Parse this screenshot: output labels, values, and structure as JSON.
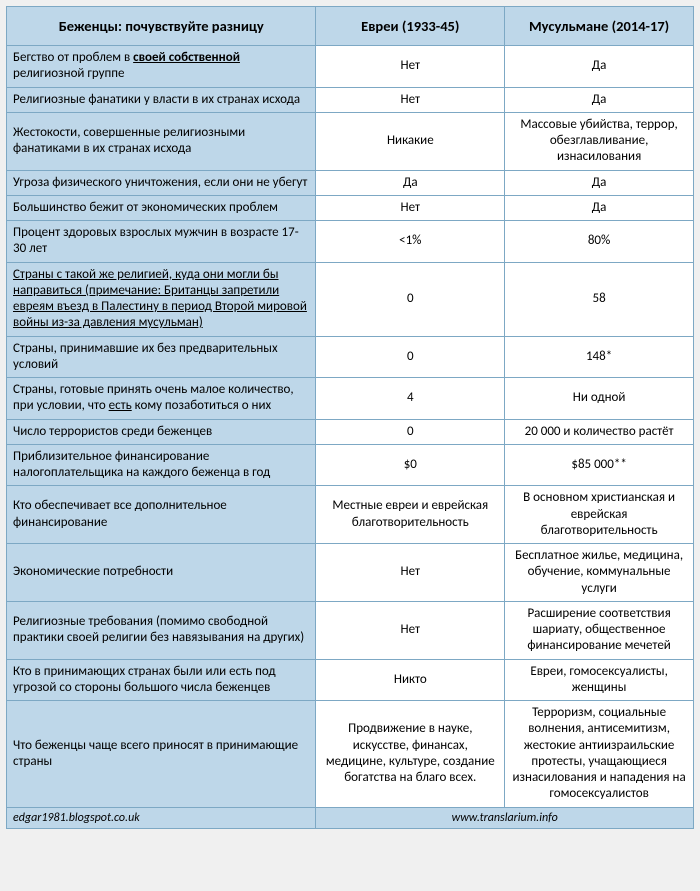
{
  "header": {
    "title": "Беженцы: почувствуйте разницу",
    "col1": "Евреи (1933-45)",
    "col2": "Мусульмане (2014-17)"
  },
  "rows": [
    {
      "label_html": "Бегство от проблем в <span class='u'><b>своей собственной</b></span> религиозной группе",
      "c1": "Нет",
      "c2": "Да"
    },
    {
      "label_html": "Религиозные фанатики у власти в их странах исхода",
      "c1": "Нет",
      "c2": "Да"
    },
    {
      "label_html": "Жестокости, совершенные религиозными фанатиками в их странах исхода",
      "c1": "Никакие",
      "c2": "Массовые убийства, террор, обезглавливание, изнасилования"
    },
    {
      "label_html": "Угроза физического уничтожения, если они не убегут",
      "c1": "Да",
      "c2": "Да"
    },
    {
      "label_html": "Большинство бежит от экономических проблем",
      "c1": "Нет",
      "c2": "Да"
    },
    {
      "label_html": "Процент здоровых взрослых мужчин в возрасте 17-30 лет",
      "c1": "<1%",
      "c2": "80%"
    },
    {
      "label_html": "<span class='u'>Страны с такой же религией, куда они могли бы направиться (примечание: Британцы запретили евреям въезд в Палестину в период Второй мировой войны из-за давления мусульман)</span>",
      "c1": "0",
      "c2": "58"
    },
    {
      "label_html": "Страны, принимавшие их без предварительных условий",
      "c1": "0",
      "c2": "148*"
    },
    {
      "label_html": "Страны, готовые принять очень малое количество, при условии, что <span class='u'>есть</span> кому позаботиться о них",
      "c1": "4",
      "c2": "Ни одной"
    },
    {
      "label_html": "Число террористов среди беженцев",
      "c1": "0",
      "c2": "20 000 и количество растёт"
    },
    {
      "label_html": "Приблизительное финансирование налогоплательщика на каждого беженца в год",
      "c1": "$0",
      "c2": "$85 000**"
    },
    {
      "label_html": "Кто обеспечивает все дополнительное финансирование",
      "c1": "Местные евреи и еврейская благотворительность",
      "c2": "В основном христианская и еврейская благотворительность"
    },
    {
      "label_html": "Экономические потребности",
      "c1": "Нет",
      "c2": "Бесплатное жилье, медицина, обучение, коммунальные услуги"
    },
    {
      "label_html": "Религиозные требования (помимо свободной практики своей религии без навязывания на других)",
      "c1": "Нет",
      "c2": "Расширение соответствия шариату, общественное финансирование мечетей"
    },
    {
      "label_html": "Кто в принимающих странах были или есть под угрозой со стороны большого числа беженцев",
      "c1": "Никто",
      "c2": "Евреи, гомосексуалисты, женщины"
    },
    {
      "label_html": "Что беженцы чаще всего приносят в принимающие страны",
      "c1": "Продвижение в науке, искусстве, финансах, медицине, культуре, создание богатства на благо всех.",
      "c2": "Терроризм, социальные волнения, антисемитизм, жестокие антиизраильские протесты, учащающиеся изнасилования и нападения на гомосексуалистов"
    }
  ],
  "footer": {
    "left": "edgar1981.blogspot.co.uk",
    "right": "www.translarium.info"
  },
  "colors": {
    "header_bg": "#bed7e9",
    "border": "#7da8c4",
    "body_bg": "#ffffff"
  }
}
